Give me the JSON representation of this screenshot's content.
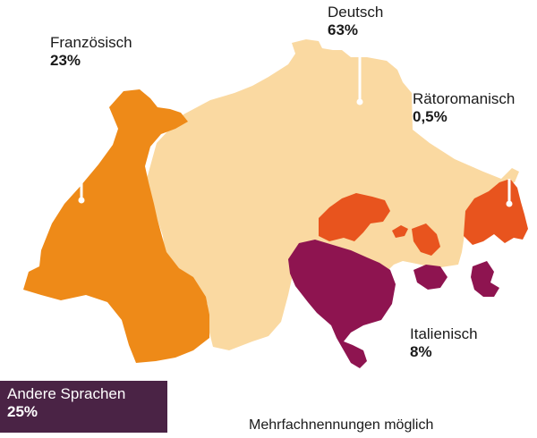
{
  "colors": {
    "deutsch": "#FAD9A1",
    "franzoesisch": "#EE8A18",
    "italienisch": "#8E1450",
    "raetoromanisch": "#E8541E",
    "andere": "#4A2345",
    "leader": "#ffffff"
  },
  "languages": [
    {
      "key": "franzoesisch",
      "name": "Französisch",
      "percent": "23%"
    },
    {
      "key": "deutsch",
      "name": "Deutsch",
      "percent": "63%"
    },
    {
      "key": "raetoromanisch",
      "name": "Rätoromanisch",
      "percent": "0,5%"
    },
    {
      "key": "italienisch",
      "name": "Italienisch",
      "percent": "8%"
    }
  ],
  "other": {
    "name": "Andere Sprachen",
    "percent": "25%"
  },
  "note": "Mehrfachnennungen möglich"
}
